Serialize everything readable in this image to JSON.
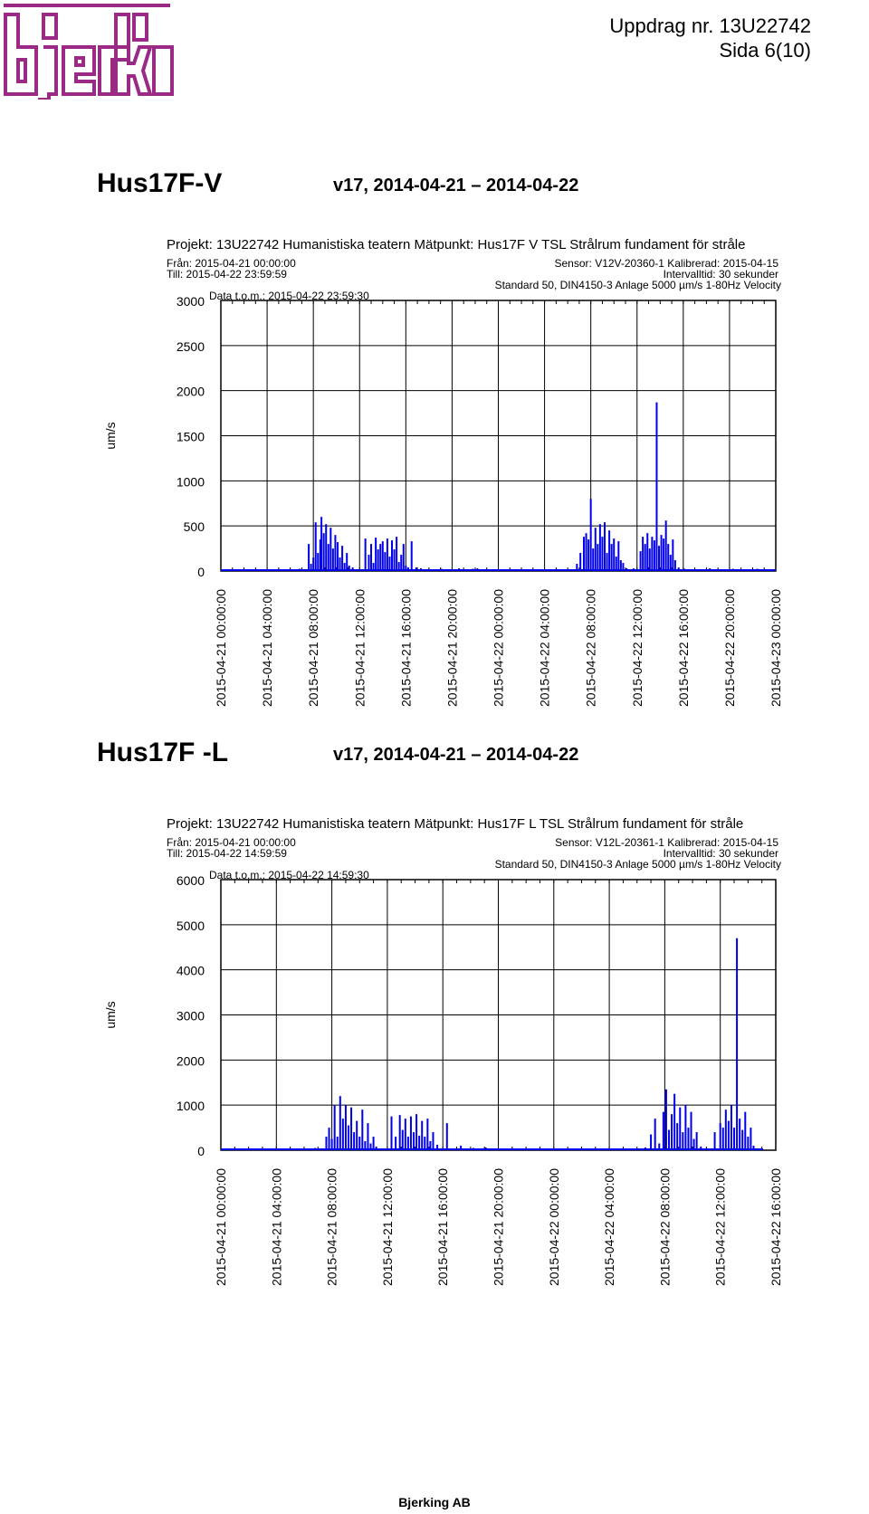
{
  "header": {
    "logo_text": "bjerking",
    "doc_ref": "Uppdrag nr. 13U22742",
    "page": "Sida 6(10)",
    "logo_color": "#9b2a87"
  },
  "footer": {
    "company": "Bjerking AB"
  },
  "sections": [
    {
      "title": "Hus17F-V",
      "period": "v17, 2014-04-21 – 2014-04-22",
      "project_line": "Projekt: 13U22742 Humanistiska teatern  Mätpunkt: Hus17F V TSL Strålrum  fundament för stråle",
      "from": "Från: 2015-04-21 00:00:00",
      "till": "Till: 2015-04-22 23:59:59",
      "sensor": "Sensor: V12V-20360-1  Kalibrerad:  2015-04-15",
      "interval": "Intervalltid: 30 sekunder",
      "standard": "Standard 50, DIN4150-3 Anlage 5000 µm/s 1-80Hz Velocity",
      "data_tom": "Data t.o.m.: 2015-04-22 23:59:30"
    },
    {
      "title": "Hus17F -L",
      "period": "v17, 2014-04-21 – 2014-04-22",
      "project_line": "Projekt: 13U22742 Humanistiska teatern  Mätpunkt: Hus17F L TSL Strålrum  fundament för stråle",
      "from": "Från: 2015-04-21 00:00:00",
      "till": "Till: 2015-04-22 14:59:59",
      "sensor": "Sensor: V12L-20361-1  Kalibrerad:  2015-04-15",
      "interval": "Intervalltid: 30 sekunder",
      "standard": "Standard 50, DIN4150-3 Anlage 5000 µm/s 1-80Hz Velocity",
      "data_tom": "Data t.o.m.: 2015-04-22 14:59:30"
    }
  ],
  "chart_data": [
    {
      "type": "bar",
      "ylabel": "um/s",
      "ylim": [
        0,
        3000
      ],
      "yticks": [
        "3000",
        "2500",
        "2000",
        "1500",
        "1000",
        "500",
        "0"
      ],
      "x_hours_range": [
        0,
        48
      ],
      "xticks": [
        "2015-04-21 00:00:00",
        "2015-04-21 04:00:00",
        "2015-04-21 08:00:00",
        "2015-04-21 12:00:00",
        "2015-04-21 16:00:00",
        "2015-04-21 20:00:00",
        "2015-04-22 00:00:00",
        "2015-04-22 04:00:00",
        "2015-04-22 08:00:00",
        "2015-04-22 12:00:00",
        "2015-04-22 16:00:00",
        "2015-04-22 20:00:00",
        "2015-04-23 00:00:00"
      ],
      "grid": true,
      "color": "#0000ee",
      "series": [
        {
          "x": [
            6.8,
            7.6,
            7.8,
            8.0,
            8.2,
            8.4,
            8.6,
            8.7,
            8.9,
            9.1,
            9.3,
            9.5,
            9.7,
            9.9,
            10.1,
            10.3,
            10.5,
            10.7,
            10.9,
            11.1,
            11.4,
            12.5,
            12.8,
            13.0,
            13.2,
            13.4,
            13.6,
            13.8,
            14.0,
            14.2,
            14.4,
            14.6,
            14.8,
            15.0,
            15.2,
            15.4,
            15.6,
            15.8,
            16.0,
            16.2,
            16.5,
            16.9,
            17.3,
            18.3,
            19.1,
            19.6,
            20.6,
            21.8,
            22.2,
            25.5,
            28.5,
            30.8,
            31.1,
            31.4,
            31.6,
            31.8,
            32.0,
            32.2,
            32.4,
            32.6,
            32.8,
            33.0,
            33.2,
            33.4,
            33.6,
            33.8,
            34.0,
            34.2,
            34.4,
            34.6,
            34.8,
            35.1,
            35.7,
            36.3,
            36.5,
            36.7,
            36.9,
            37.1,
            37.3,
            37.5,
            37.7,
            37.9,
            38.1,
            38.3,
            38.5,
            38.7,
            38.9,
            39.1,
            39.3,
            39.6,
            40.1,
            41.0,
            42.3,
            43.1,
            44.3,
            45.6,
            46.4,
            47.5
          ],
          "y": [
            25,
            300,
            80,
            150,
            540,
            200,
            350,
            600,
            420,
            520,
            300,
            480,
            250,
            400,
            320,
            150,
            280,
            90,
            200,
            60,
            40,
            360,
            180,
            300,
            90,
            370,
            240,
            300,
            330,
            210,
            360,
            160,
            340,
            240,
            380,
            100,
            180,
            300,
            60,
            40,
            330,
            40,
            30,
            20,
            25,
            20,
            30,
            25,
            30,
            15,
            20,
            80,
            200,
            380,
            420,
            350,
            800,
            250,
            480,
            300,
            520,
            380,
            540,
            200,
            450,
            300,
            360,
            160,
            330,
            120,
            90,
            30,
            30,
            220,
            380,
            300,
            420,
            250,
            380,
            340,
            1870,
            280,
            400,
            360,
            560,
            300,
            180,
            350,
            120,
            40,
            25,
            20,
            30,
            20,
            25,
            20,
            25,
            20
          ]
        }
      ]
    },
    {
      "type": "bar",
      "ylabel": "um/s",
      "ylim": [
        0,
        6000
      ],
      "yticks": [
        "6000",
        "5000",
        "4000",
        "3000",
        "2000",
        "1000",
        "0"
      ],
      "x_hours_range": [
        0,
        40
      ],
      "xticks": [
        "2015-04-21 00:00:00",
        "2015-04-21 04:00:00",
        "2015-04-21 08:00:00",
        "2015-04-21 12:00:00",
        "2015-04-21 16:00:00",
        "2015-04-21 20:00:00",
        "2015-04-22 00:00:00",
        "2015-04-22 04:00:00",
        "2015-04-22 08:00:00",
        "2015-04-22 12:00:00",
        "2015-04-22 16:00:00"
      ],
      "grid": true,
      "color": "#0000ee",
      "series": [
        {
          "x": [
            6.8,
            7.6,
            7.8,
            8.0,
            8.2,
            8.4,
            8.6,
            8.8,
            9.0,
            9.2,
            9.4,
            9.6,
            9.8,
            10.0,
            10.2,
            10.4,
            10.6,
            10.8,
            11.0,
            11.2,
            12.3,
            12.6,
            12.9,
            13.1,
            13.3,
            13.5,
            13.7,
            13.9,
            14.1,
            14.3,
            14.5,
            14.7,
            14.9,
            15.1,
            15.3,
            15.6,
            16.3,
            17.3,
            18.2,
            19.1,
            20.6,
            22.5,
            25.1,
            28.4,
            30.6,
            31.0,
            31.3,
            31.6,
            31.9,
            32.1,
            32.3,
            32.5,
            32.7,
            32.9,
            33.1,
            33.3,
            33.5,
            33.7,
            33.9,
            34.1,
            34.3,
            34.6,
            35.2,
            35.6,
            36.0,
            36.2,
            36.4,
            36.6,
            36.8,
            37.0,
            37.2,
            37.4,
            37.6,
            37.8,
            38.0,
            38.2,
            38.4,
            38.6
          ],
          "y": [
            50,
            300,
            500,
            250,
            1000,
            300,
            1200,
            700,
            1000,
            550,
            950,
            400,
            650,
            300,
            900,
            200,
            600,
            150,
            300,
            80,
            750,
            300,
            780,
            450,
            700,
            300,
            750,
            400,
            800,
            320,
            650,
            300,
            700,
            200,
            400,
            120,
            600,
            100,
            50,
            60,
            40,
            30,
            40,
            30,
            60,
            350,
            700,
            150,
            850,
            1350,
            450,
            800,
            1250,
            600,
            950,
            400,
            1000,
            500,
            850,
            250,
            400,
            80,
            40,
            400,
            600,
            500,
            900,
            650,
            1000,
            500,
            4700,
            700,
            450,
            850,
            300,
            500,
            100,
            40
          ]
        }
      ]
    }
  ]
}
